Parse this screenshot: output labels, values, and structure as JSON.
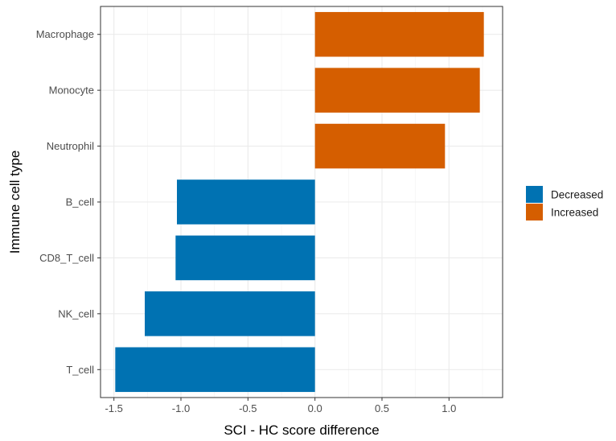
{
  "chart_data": {
    "type": "bar",
    "orientation": "horizontal",
    "categories": [
      "Macrophage",
      "Monocyte",
      "Neutrophil",
      "B_cell",
      "CD8_T_cell",
      "NK_cell",
      "T_cell"
    ],
    "values": [
      1.26,
      1.23,
      0.97,
      -1.03,
      -1.04,
      -1.27,
      -1.49
    ],
    "groups": [
      "Increased",
      "Increased",
      "Increased",
      "Decreased",
      "Decreased",
      "Decreased",
      "Decreased"
    ],
    "xlabel": "SCI - HC score difference",
    "ylabel": "Immune cell type",
    "xlim": [
      -1.6,
      1.4
    ],
    "xticks": [
      -1.5,
      -1.0,
      -0.5,
      0.0,
      0.5,
      1.0
    ],
    "xtick_labels": [
      "-1.5",
      "-1.0",
      "-0.5",
      "0.0",
      "0.5",
      "1.0"
    ],
    "grid": true,
    "legend": {
      "placement": "right",
      "entries": [
        {
          "label": "Decreased",
          "color": "#0072b2"
        },
        {
          "label": "Increased",
          "color": "#d55e00"
        }
      ]
    }
  }
}
